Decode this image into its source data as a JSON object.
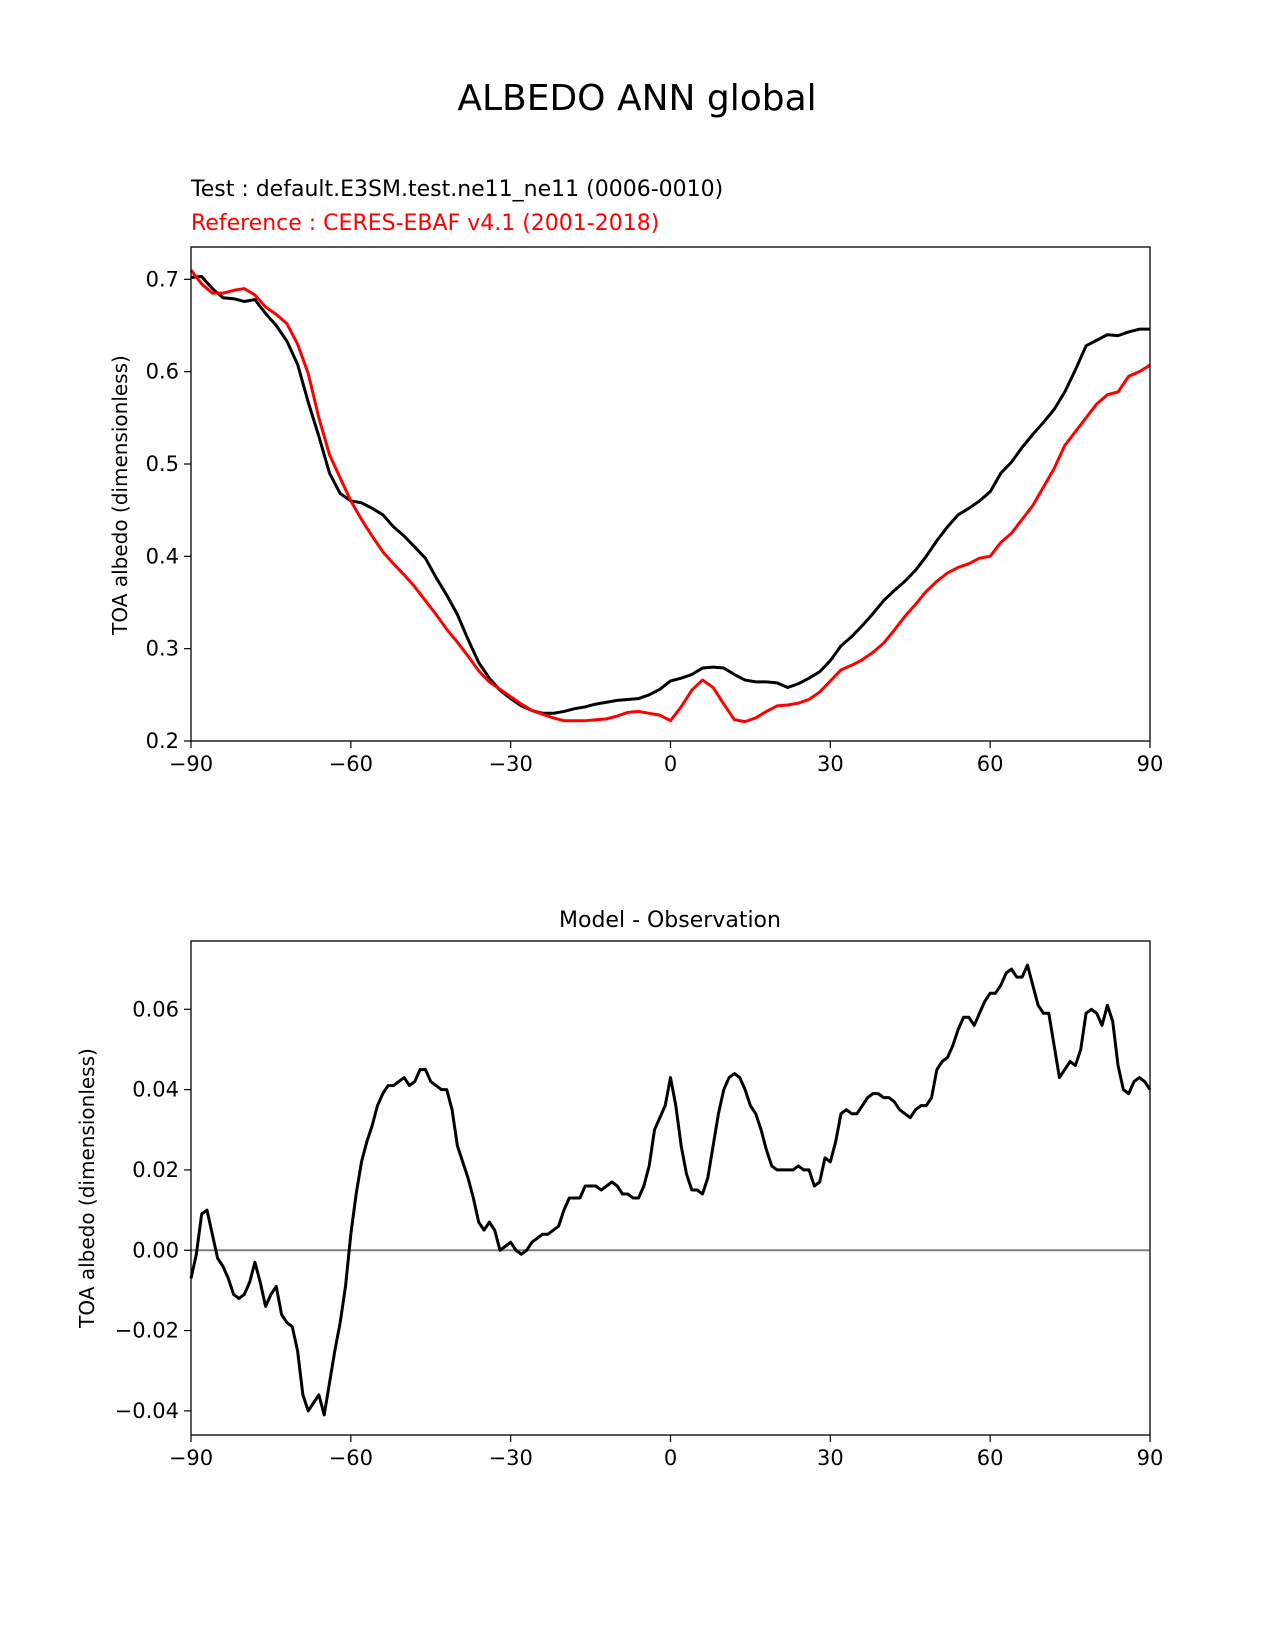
{
  "figure": {
    "suptitle": "ALBEDO ANN global"
  },
  "chart_data": [
    {
      "type": "line",
      "title_test": "Test : default.E3SM.test.ne11_ne11 (0006-0010)",
      "title_reference": "Reference : CERES-EBAF v4.1 (2001-2018)",
      "xlabel": "",
      "ylabel": "TOA albedo (dimensionless)",
      "xlim": [
        -90,
        90
      ],
      "ylim": [
        0.2,
        0.735
      ],
      "xticks": [
        -90,
        -60,
        -30,
        0,
        30,
        60,
        90
      ],
      "xtick_labels": [
        "−90",
        "−60",
        "−30",
        "0",
        "30",
        "60",
        "90"
      ],
      "yticks": [
        0.2,
        0.3,
        0.4,
        0.5,
        0.6,
        0.7
      ],
      "ytick_labels": [
        "0.2",
        "0.3",
        "0.4",
        "0.5",
        "0.6",
        "0.7"
      ],
      "series": [
        {
          "color": "#000000",
          "x": [
            -90,
            -88,
            -86,
            -84,
            -82,
            -80,
            -78,
            -76,
            -74,
            -72,
            -70,
            -68,
            -66,
            -64,
            -62,
            -60,
            -58,
            -56,
            -54,
            -52,
            -50,
            -48,
            -46,
            -44,
            -42,
            -40,
            -38,
            -36,
            -34,
            -32,
            -30,
            -28,
            -26,
            -24,
            -22,
            -20,
            -18,
            -16,
            -14,
            -12,
            -10,
            -8,
            -6,
            -4,
            -2,
            0,
            2,
            4,
            6,
            8,
            10,
            12,
            14,
            16,
            18,
            20,
            22,
            24,
            26,
            28,
            30,
            32,
            34,
            36,
            38,
            40,
            42,
            44,
            46,
            48,
            50,
            52,
            54,
            56,
            58,
            60,
            62,
            64,
            66,
            68,
            70,
            72,
            74,
            76,
            78,
            80,
            82,
            84,
            86,
            88,
            90
          ],
          "values": [
            0.702,
            0.703,
            0.69,
            0.68,
            0.679,
            0.676,
            0.678,
            0.663,
            0.65,
            0.633,
            0.608,
            0.567,
            0.53,
            0.49,
            0.468,
            0.46,
            0.458,
            0.452,
            0.445,
            0.432,
            0.422,
            0.41,
            0.398,
            0.377,
            0.358,
            0.337,
            0.31,
            0.285,
            0.268,
            0.255,
            0.246,
            0.238,
            0.233,
            0.23,
            0.23,
            0.232,
            0.235,
            0.237,
            0.24,
            0.242,
            0.244,
            0.245,
            0.246,
            0.25,
            0.256,
            0.265,
            0.268,
            0.272,
            0.279,
            0.28,
            0.279,
            0.272,
            0.266,
            0.264,
            0.264,
            0.263,
            0.258,
            0.262,
            0.268,
            0.275,
            0.287,
            0.303,
            0.313,
            0.325,
            0.338,
            0.352,
            0.363,
            0.373,
            0.385,
            0.4,
            0.417,
            0.432,
            0.445,
            0.452,
            0.46,
            0.47,
            0.49,
            0.502,
            0.518,
            0.532,
            0.545,
            0.559,
            0.578,
            0.602,
            0.628,
            0.634,
            0.64,
            0.639,
            0.643,
            0.646,
            0.646
          ]
        },
        {
          "color": "#ff0000",
          "x": [
            -90,
            -88,
            -86,
            -84,
            -82,
            -80,
            -78,
            -76,
            -74,
            -72,
            -70,
            -68,
            -66,
            -64,
            -62,
            -60,
            -58,
            -56,
            -54,
            -52,
            -50,
            -48,
            -46,
            -44,
            -42,
            -40,
            -38,
            -36,
            -34,
            -32,
            -30,
            -28,
            -26,
            -24,
            -22,
            -20,
            -18,
            -16,
            -14,
            -12,
            -10,
            -8,
            -6,
            -4,
            -2,
            0,
            2,
            4,
            6,
            8,
            10,
            12,
            14,
            16,
            18,
            20,
            22,
            24,
            26,
            28,
            30,
            32,
            34,
            36,
            38,
            40,
            42,
            44,
            46,
            48,
            50,
            52,
            54,
            56,
            58,
            60,
            62,
            64,
            66,
            68,
            70,
            72,
            74,
            76,
            78,
            80,
            82,
            84,
            86,
            88,
            90
          ],
          "values": [
            0.71,
            0.695,
            0.685,
            0.685,
            0.688,
            0.69,
            0.683,
            0.67,
            0.662,
            0.652,
            0.63,
            0.598,
            0.55,
            0.51,
            0.485,
            0.46,
            0.44,
            0.422,
            0.405,
            0.392,
            0.38,
            0.367,
            0.352,
            0.337,
            0.321,
            0.307,
            0.292,
            0.276,
            0.264,
            0.256,
            0.248,
            0.24,
            0.233,
            0.229,
            0.225,
            0.222,
            0.222,
            0.222,
            0.223,
            0.224,
            0.227,
            0.231,
            0.232,
            0.23,
            0.228,
            0.222,
            0.237,
            0.255,
            0.266,
            0.258,
            0.24,
            0.223,
            0.221,
            0.225,
            0.232,
            0.238,
            0.239,
            0.241,
            0.245,
            0.253,
            0.265,
            0.277,
            0.282,
            0.288,
            0.296,
            0.306,
            0.32,
            0.335,
            0.348,
            0.362,
            0.373,
            0.382,
            0.388,
            0.392,
            0.398,
            0.4,
            0.415,
            0.425,
            0.44,
            0.455,
            0.475,
            0.495,
            0.52,
            0.535,
            0.55,
            0.565,
            0.575,
            0.578,
            0.595,
            0.6,
            0.607
          ]
        }
      ]
    },
    {
      "type": "line",
      "title": "Model - Observation",
      "xlabel": "",
      "ylabel": "TOA albedo (dimensionless)",
      "xlim": [
        -90,
        90
      ],
      "ylim": [
        -0.046,
        0.077
      ],
      "xticks": [
        -90,
        -60,
        -30,
        0,
        30,
        60,
        90
      ],
      "xtick_labels": [
        "−90",
        "−60",
        "−30",
        "0",
        "30",
        "60",
        "90"
      ],
      "yticks": [
        -0.04,
        -0.02,
        0.0,
        0.02,
        0.04,
        0.06
      ],
      "ytick_labels": [
        "−0.04",
        "−0.02",
        "0.00",
        "0.02",
        "0.04",
        "0.06"
      ],
      "zero_line": {
        "value": 0.0,
        "color": "#808080"
      },
      "series": [
        {
          "color": "#000000",
          "x": [
            -90,
            -89,
            -88,
            -87,
            -86,
            -85,
            -84,
            -83,
            -82,
            -81,
            -80,
            -79,
            -78,
            -77,
            -76,
            -75,
            -74,
            -73,
            -72,
            -71,
            -70,
            -69,
            -68,
            -67,
            -66,
            -65,
            -64,
            -63,
            -62,
            -61,
            -60,
            -59,
            -58,
            -57,
            -56,
            -55,
            -54,
            -53,
            -52,
            -51,
            -50,
            -49,
            -48,
            -47,
            -46,
            -45,
            -44,
            -43,
            -42,
            -41,
            -40,
            -39,
            -38,
            -37,
            -36,
            -35,
            -34,
            -33,
            -32,
            -31,
            -30,
            -29,
            -28,
            -27,
            -26,
            -25,
            -24,
            -23,
            -22,
            -21,
            -20,
            -19,
            -18,
            -17,
            -16,
            -15,
            -14,
            -13,
            -12,
            -11,
            -10,
            -9,
            -8,
            -7,
            -6,
            -5,
            -4,
            -3,
            -2,
            -1,
            0,
            1,
            2,
            3,
            4,
            5,
            6,
            7,
            8,
            9,
            10,
            11,
            12,
            13,
            14,
            15,
            16,
            17,
            18,
            19,
            20,
            21,
            22,
            23,
            24,
            25,
            26,
            27,
            28,
            29,
            30,
            31,
            32,
            33,
            34,
            35,
            36,
            37,
            38,
            39,
            40,
            41,
            42,
            43,
            44,
            45,
            46,
            47,
            48,
            49,
            50,
            51,
            52,
            53,
            54,
            55,
            56,
            57,
            58,
            59,
            60,
            61,
            62,
            63,
            64,
            65,
            66,
            67,
            68,
            69,
            70,
            71,
            72,
            73,
            74,
            75,
            76,
            77,
            78,
            79,
            80,
            81,
            82,
            83,
            84,
            85,
            86,
            87,
            88,
            89,
            90
          ],
          "values": [
            -0.007,
            -0.001,
            0.009,
            0.01,
            0.004,
            -0.002,
            -0.004,
            -0.007,
            -0.011,
            -0.012,
            -0.011,
            -0.008,
            -0.003,
            -0.008,
            -0.014,
            -0.011,
            -0.009,
            -0.016,
            -0.018,
            -0.019,
            -0.025,
            -0.036,
            -0.04,
            -0.038,
            -0.036,
            -0.041,
            -0.033,
            -0.025,
            -0.018,
            -0.009,
            0.004,
            0.014,
            0.022,
            0.027,
            0.031,
            0.036,
            0.039,
            0.041,
            0.041,
            0.042,
            0.043,
            0.041,
            0.042,
            0.045,
            0.045,
            0.042,
            0.041,
            0.04,
            0.04,
            0.035,
            0.026,
            0.022,
            0.018,
            0.013,
            0.007,
            0.005,
            0.007,
            0.005,
            0.0,
            0.001,
            0.002,
            0.0,
            -0.001,
            0.0,
            0.002,
            0.003,
            0.004,
            0.004,
            0.005,
            0.006,
            0.01,
            0.013,
            0.013,
            0.013,
            0.016,
            0.016,
            0.016,
            0.015,
            0.016,
            0.017,
            0.016,
            0.014,
            0.014,
            0.013,
            0.013,
            0.016,
            0.021,
            0.03,
            0.033,
            0.036,
            0.043,
            0.036,
            0.026,
            0.019,
            0.015,
            0.015,
            0.014,
            0.018,
            0.026,
            0.034,
            0.04,
            0.043,
            0.044,
            0.043,
            0.04,
            0.036,
            0.034,
            0.03,
            0.025,
            0.021,
            0.02,
            0.02,
            0.02,
            0.02,
            0.021,
            0.02,
            0.02,
            0.016,
            0.017,
            0.023,
            0.022,
            0.027,
            0.034,
            0.035,
            0.034,
            0.034,
            0.036,
            0.038,
            0.039,
            0.039,
            0.038,
            0.038,
            0.037,
            0.035,
            0.034,
            0.033,
            0.035,
            0.036,
            0.036,
            0.038,
            0.045,
            0.047,
            0.048,
            0.051,
            0.055,
            0.058,
            0.058,
            0.056,
            0.059,
            0.062,
            0.064,
            0.064,
            0.066,
            0.069,
            0.07,
            0.068,
            0.068,
            0.071,
            0.066,
            0.061,
            0.059,
            0.059,
            0.051,
            0.043,
            0.045,
            0.047,
            0.046,
            0.05,
            0.059,
            0.06,
            0.059,
            0.056,
            0.061,
            0.057,
            0.046,
            0.04,
            0.039,
            0.042,
            0.043,
            0.042,
            0.04
          ]
        }
      ]
    }
  ]
}
